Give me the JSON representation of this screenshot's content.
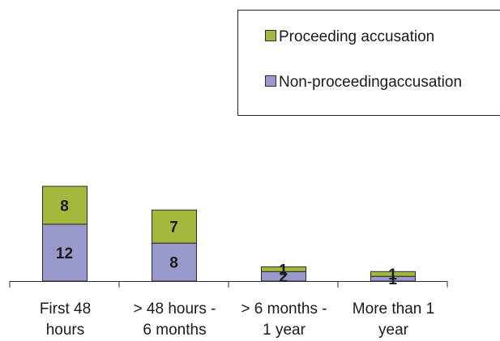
{
  "chart_data": {
    "type": "bar",
    "stacked": true,
    "title": "",
    "xlabel": "",
    "ylabel": "",
    "ylim": [
      0,
      20
    ],
    "grid": false,
    "legend_position": "top-right",
    "categories": [
      [
        "First 48",
        "hours"
      ],
      [
        "> 48 hours -",
        "6 months"
      ],
      [
        "> 6 months -",
        "1 year"
      ],
      [
        "More than 1",
        "year"
      ]
    ],
    "series": [
      {
        "name": "Non-proceedingaccusation",
        "color": "#9999cc",
        "values": [
          12,
          8,
          2,
          1
        ]
      },
      {
        "name": "Proceeding accusation",
        "color": "#a5b83e",
        "values": [
          8,
          7,
          1,
          1
        ]
      }
    ],
    "legend_order": [
      1,
      0
    ]
  }
}
